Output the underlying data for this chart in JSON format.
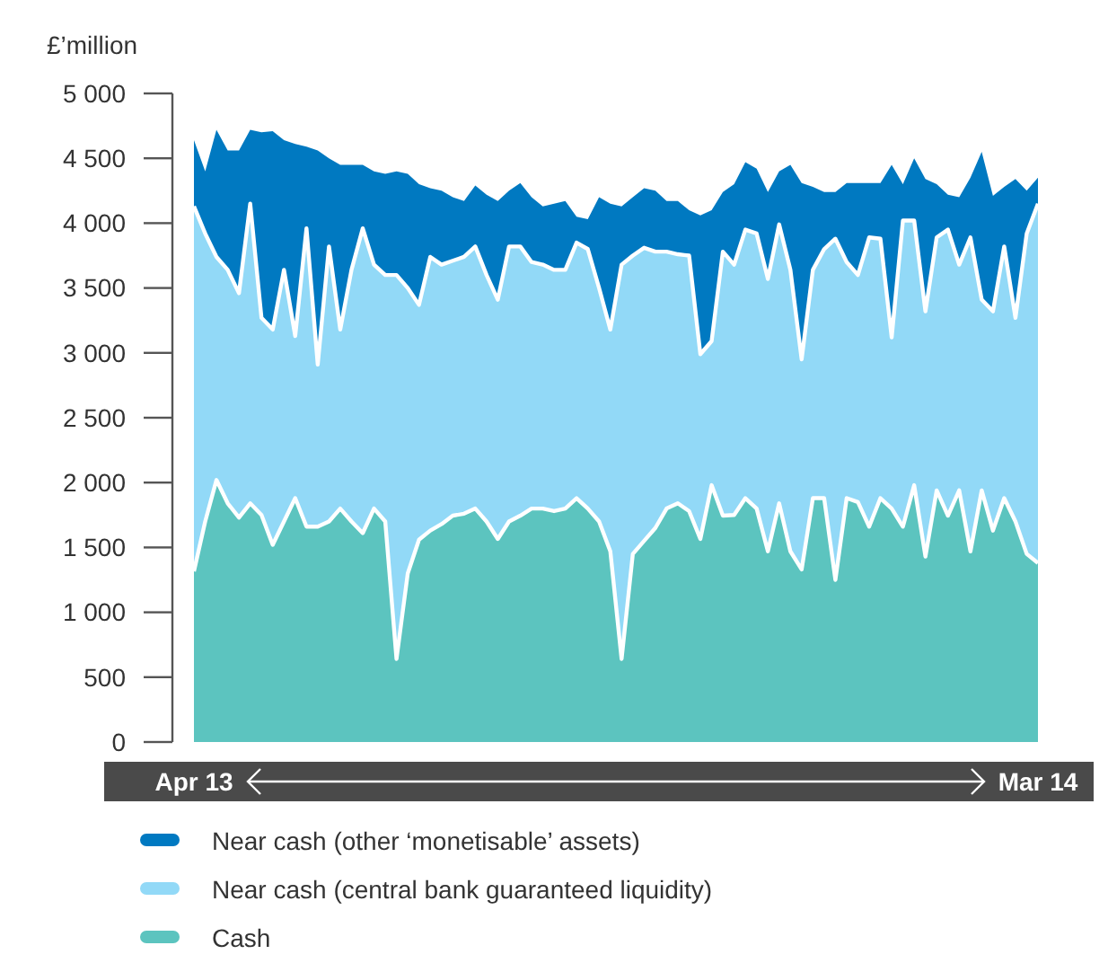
{
  "chart_data": {
    "type": "area",
    "stacked": true,
    "ylabel": "£’million",
    "categories": [
      "Apr 13",
      null,
      null,
      null,
      null,
      null,
      null,
      null,
      null,
      null,
      null,
      null,
      null,
      null,
      null,
      null,
      null,
      null,
      null,
      null,
      null,
      null,
      null,
      null,
      null,
      null,
      null,
      null,
      null,
      null,
      null,
      null,
      null,
      null,
      null,
      null,
      null,
      null,
      null,
      null,
      null,
      null,
      null,
      null,
      null,
      null,
      null,
      null,
      null,
      null,
      null,
      null,
      null,
      null,
      null,
      null,
      null,
      null,
      null,
      null,
      null,
      null,
      null,
      null,
      null,
      null,
      null,
      null,
      null,
      null,
      null,
      null,
      null,
      null,
      null,
      "Mar 14"
    ],
    "series": [
      {
        "name": "Cash",
        "color": "#5cc4bf",
        "values": [
          1316,
          1700,
          2020,
          1840,
          1730,
          1840,
          1750,
          1520,
          1700,
          1880,
          1660,
          1660,
          1700,
          1800,
          1700,
          1610,
          1800,
          1700,
          640,
          1300,
          1560,
          1630,
          1680,
          1745,
          1760,
          1800,
          1700,
          1565,
          1700,
          1745,
          1800,
          1800,
          1780,
          1800,
          1880,
          1800,
          1700,
          1470,
          640,
          1450,
          1550,
          1650,
          1800,
          1840,
          1780,
          1565,
          1980,
          1745,
          1750,
          1880,
          1800,
          1470,
          1840,
          1470,
          1330,
          1880,
          1880,
          1250,
          1880,
          1850,
          1660,
          1880,
          1800,
          1660,
          1980,
          1430,
          1940,
          1745,
          1940,
          1470,
          1940,
          1630,
          1880,
          1700,
          1450,
          1380
        ]
      },
      {
        "name": "Near cash (central bank guaranteed liquidity)",
        "color": "#92d9f7",
        "values": [
          2814,
          2220,
          1720,
          1800,
          1730,
          2310,
          1520,
          1660,
          1940,
          1250,
          2300,
          1250,
          2120,
          1380,
          1940,
          2350,
          1880,
          1900,
          2960,
          2200,
          1810,
          2110,
          2000,
          1965,
          1980,
          2020,
          1900,
          1845,
          2120,
          2075,
          1900,
          1880,
          1860,
          1840,
          1970,
          2000,
          1800,
          1710,
          3040,
          2300,
          2260,
          2130,
          1980,
          1920,
          1970,
          1425,
          1110,
          2035,
          1930,
          2070,
          2120,
          2100,
          2150,
          2170,
          1620,
          1760,
          1920,
          2630,
          1820,
          1750,
          2230,
          2000,
          1320,
          2360,
          2040,
          1890,
          1950,
          2205,
          1740,
          2420,
          1470,
          1690,
          1940,
          1570,
          2470,
          2770
        ]
      },
      {
        "name": "Near cash (other ‘monetisable’ assets)",
        "color": "#0079c1",
        "values": [
          510,
          480,
          980,
          920,
          1100,
          570,
          1430,
          1530,
          1000,
          1480,
          630,
          1650,
          680,
          1270,
          810,
          490,
          720,
          780,
          800,
          880,
          930,
          530,
          570,
          490,
          430,
          470,
          620,
          760,
          430,
          490,
          500,
          450,
          510,
          530,
          200,
          230,
          700,
          970,
          450,
          450,
          460,
          470,
          390,
          410,
          350,
          1070,
          1010,
          460,
          620,
          520,
          500,
          670,
          410,
          810,
          1360,
          640,
          440,
          360,
          610,
          710,
          420,
          430,
          1330,
          280,
          480,
          1020,
          410,
          270,
          520,
          460,
          1140,
          890,
          460,
          1070,
          330,
          200
        ]
      }
    ],
    "ylim": [
      0,
      5000
    ],
    "yticks": [
      0,
      500,
      {
        "value": 1000,
        "label": "1 000"
      },
      {
        "value": 1500,
        "label": "1 500"
      },
      {
        "value": 2000,
        "label": "2 000"
      },
      {
        "value": 2500,
        "label": "2 500"
      },
      {
        "value": 3000,
        "label": "3 000"
      },
      {
        "value": 3500,
        "label": "3 500"
      },
      {
        "value": 4000,
        "label": "4 000"
      },
      {
        "value": 4500,
        "label": "4 500"
      },
      {
        "value": 5000,
        "label": "5 000"
      }
    ],
    "grid": false,
    "legend": "bottom"
  }
}
